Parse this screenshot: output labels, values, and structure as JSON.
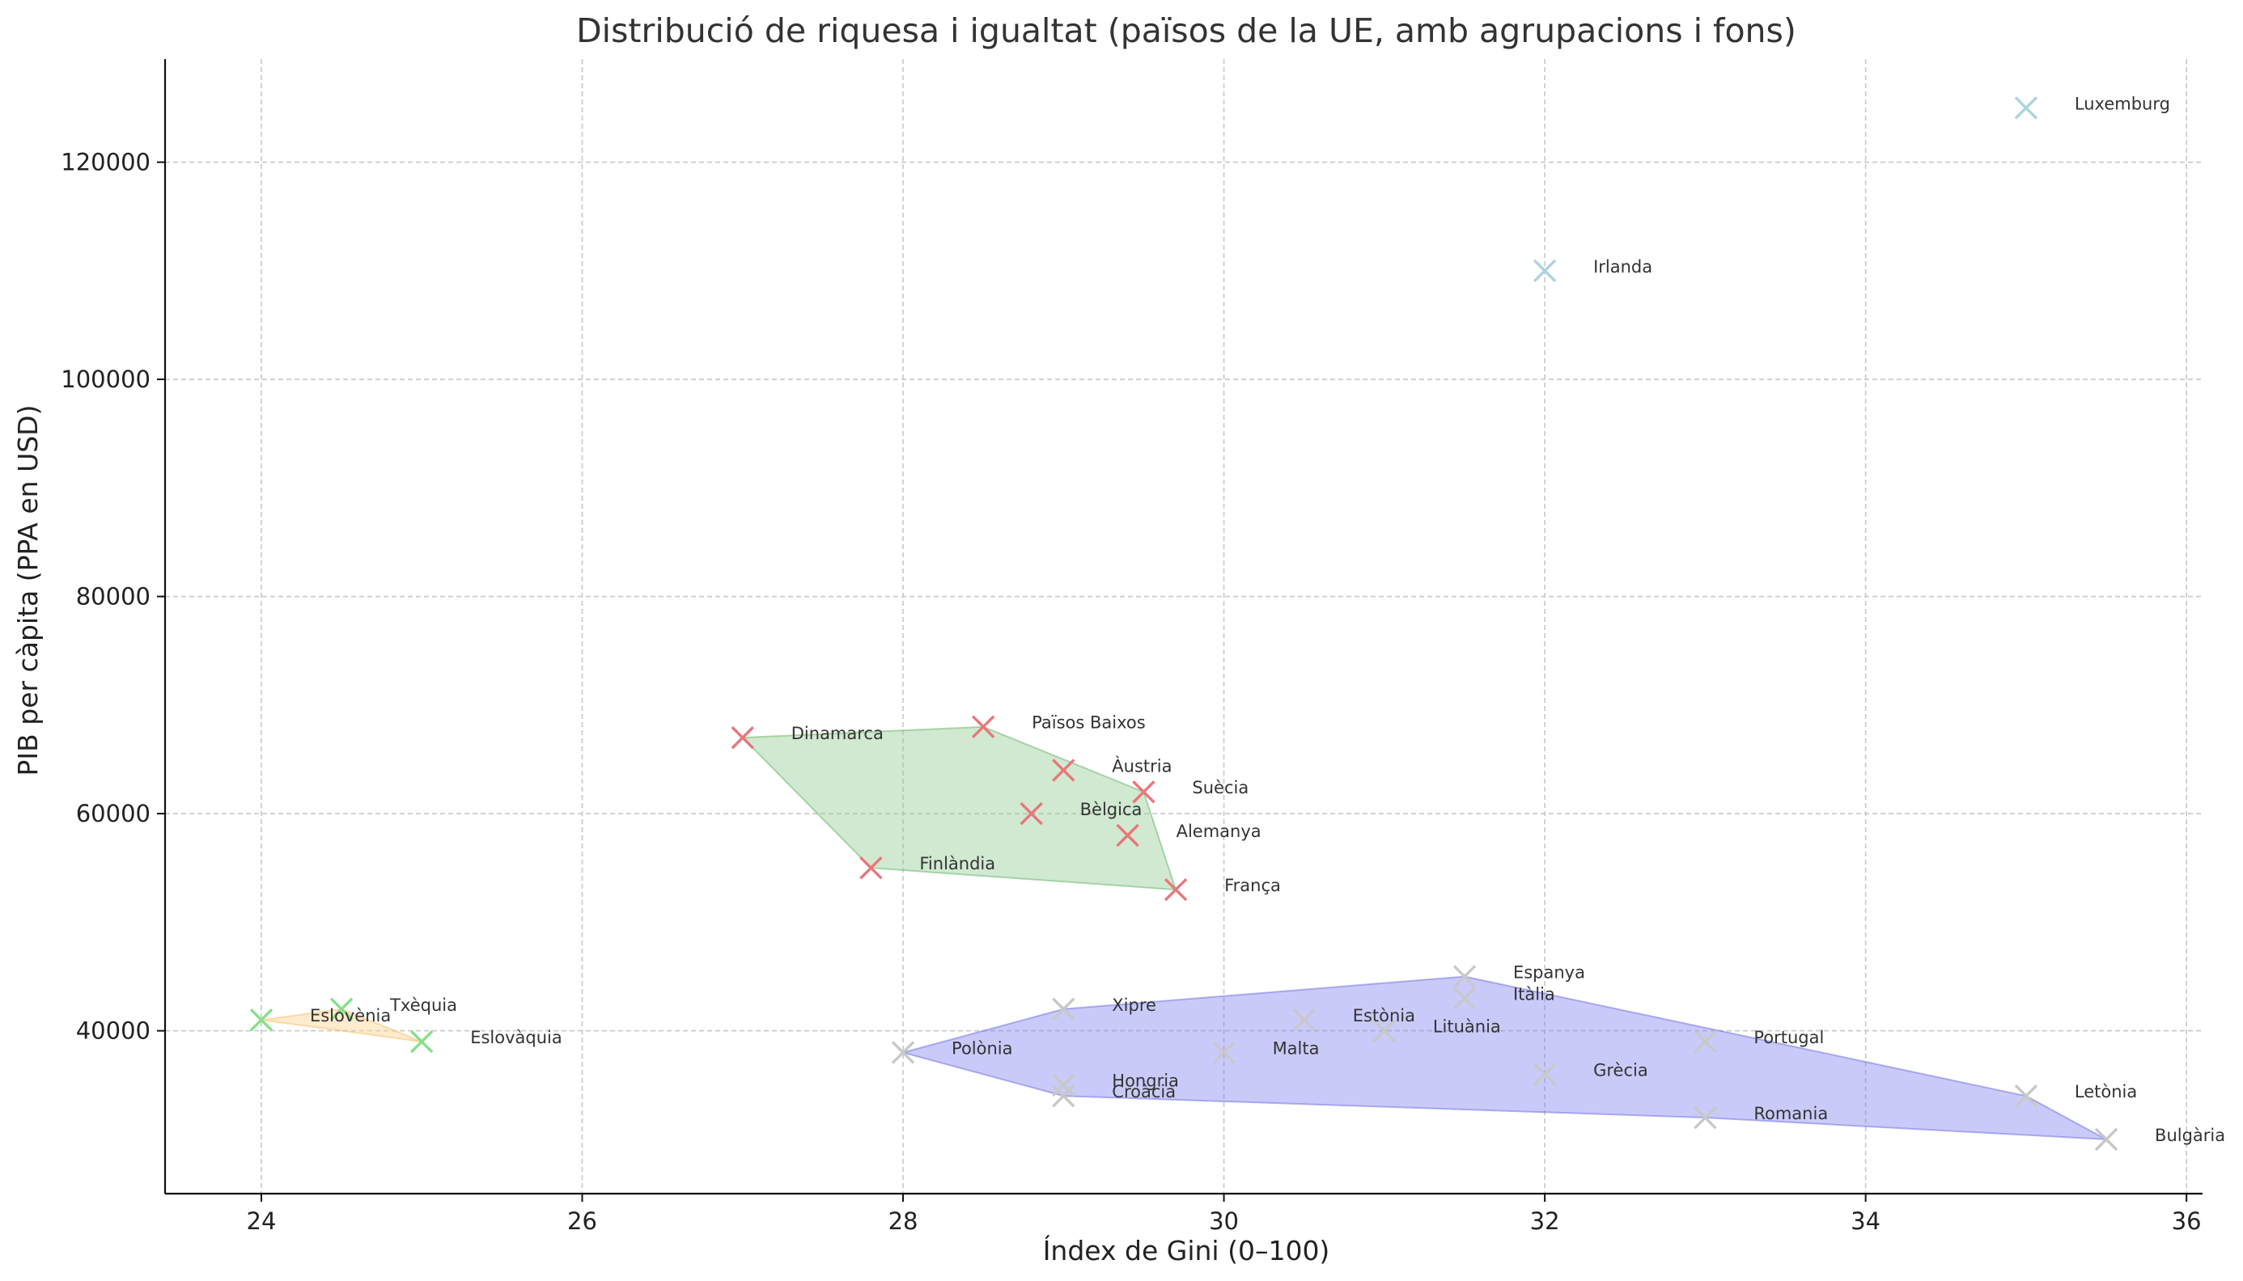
{
  "chart_data": {
    "type": "scatter",
    "title": "Distribució de riquesa i igualtat (països de la UE, amb agrupacions i fons)",
    "xlabel": "Índex de Gini (0–100)",
    "ylabel": "PIB per càpita (PPA en USD)",
    "xlim": [
      23.4,
      36.1
    ],
    "ylim": [
      25000,
      129500
    ],
    "xticks": [
      24,
      26,
      28,
      30,
      32,
      34,
      36
    ],
    "yticks": [
      40000,
      60000,
      80000,
      100000,
      120000
    ],
    "grid": true,
    "colors": {
      "red": "#e8777a",
      "green": "#86e08a",
      "grey": "#c8c8c8",
      "lightblue": "#aad4e0",
      "fill_green": "#8fca8f",
      "fill_blue": "#8080f4",
      "fill_orange": "#ffd08a"
    },
    "groups": [
      {
        "fill": "fill_green",
        "edge": "#5aaa5a",
        "hull": [
          "Dinamarca",
          "Països Baixos",
          "Suècia",
          "França",
          "Finlàndia"
        ]
      },
      {
        "fill": "fill_blue",
        "edge": "#6060e0",
        "hull": [
          "Polònia",
          "Xipre",
          "Espanya",
          "Letònia",
          "Bulgària",
          "Romania",
          "Croàcia"
        ]
      },
      {
        "fill": "fill_orange",
        "edge": "#f5b85a",
        "hull": [
          "Eslovènia",
          "Txèquia",
          "Eslovàquia"
        ]
      }
    ],
    "points": [
      {
        "label": "Luxemburg",
        "x": 35.0,
        "y": 125000,
        "color": "lightblue"
      },
      {
        "label": "Irlanda",
        "x": 32.0,
        "y": 110000,
        "color": "lightblue"
      },
      {
        "label": "Dinamarca",
        "x": 27.0,
        "y": 67000,
        "color": "red"
      },
      {
        "label": "Països Baixos",
        "x": 28.5,
        "y": 68000,
        "color": "red"
      },
      {
        "label": "Àustria",
        "x": 29.0,
        "y": 64000,
        "color": "red"
      },
      {
        "label": "Suècia",
        "x": 29.5,
        "y": 62000,
        "color": "red"
      },
      {
        "label": "Bèlgica",
        "x": 28.8,
        "y": 60000,
        "color": "red"
      },
      {
        "label": "Alemanya",
        "x": 29.4,
        "y": 58000,
        "color": "red"
      },
      {
        "label": "Finlàndia",
        "x": 27.8,
        "y": 55000,
        "color": "red"
      },
      {
        "label": "França",
        "x": 29.7,
        "y": 53000,
        "color": "red"
      },
      {
        "label": "Eslovènia",
        "x": 24.0,
        "y": 41000,
        "color": "green"
      },
      {
        "label": "Txèquia",
        "x": 24.5,
        "y": 42000,
        "color": "green"
      },
      {
        "label": "Eslovàquia",
        "x": 25.0,
        "y": 39000,
        "color": "green"
      },
      {
        "label": "Espanya",
        "x": 31.5,
        "y": 45000,
        "color": "grey"
      },
      {
        "label": "Itàlia",
        "x": 31.5,
        "y": 43000,
        "color": "grey"
      },
      {
        "label": "Xipre",
        "x": 29.0,
        "y": 42000,
        "color": "grey"
      },
      {
        "label": "Estònia",
        "x": 30.5,
        "y": 41000,
        "color": "grey"
      },
      {
        "label": "Lituània",
        "x": 31.0,
        "y": 40000,
        "color": "grey"
      },
      {
        "label": "Portugal",
        "x": 33.0,
        "y": 39000,
        "color": "grey"
      },
      {
        "label": "Polònia",
        "x": 28.0,
        "y": 38000,
        "color": "grey"
      },
      {
        "label": "Malta",
        "x": 30.0,
        "y": 38000,
        "color": "grey"
      },
      {
        "label": "Grècia",
        "x": 32.0,
        "y": 36000,
        "color": "grey"
      },
      {
        "label": "Hongria",
        "x": 29.0,
        "y": 35000,
        "color": "grey"
      },
      {
        "label": "Croàcia",
        "x": 29.0,
        "y": 34000,
        "color": "grey"
      },
      {
        "label": "Letònia",
        "x": 35.0,
        "y": 34000,
        "color": "grey"
      },
      {
        "label": "Romania",
        "x": 33.0,
        "y": 32000,
        "color": "grey"
      },
      {
        "label": "Bulgària",
        "x": 35.5,
        "y": 30000,
        "color": "grey"
      }
    ]
  }
}
